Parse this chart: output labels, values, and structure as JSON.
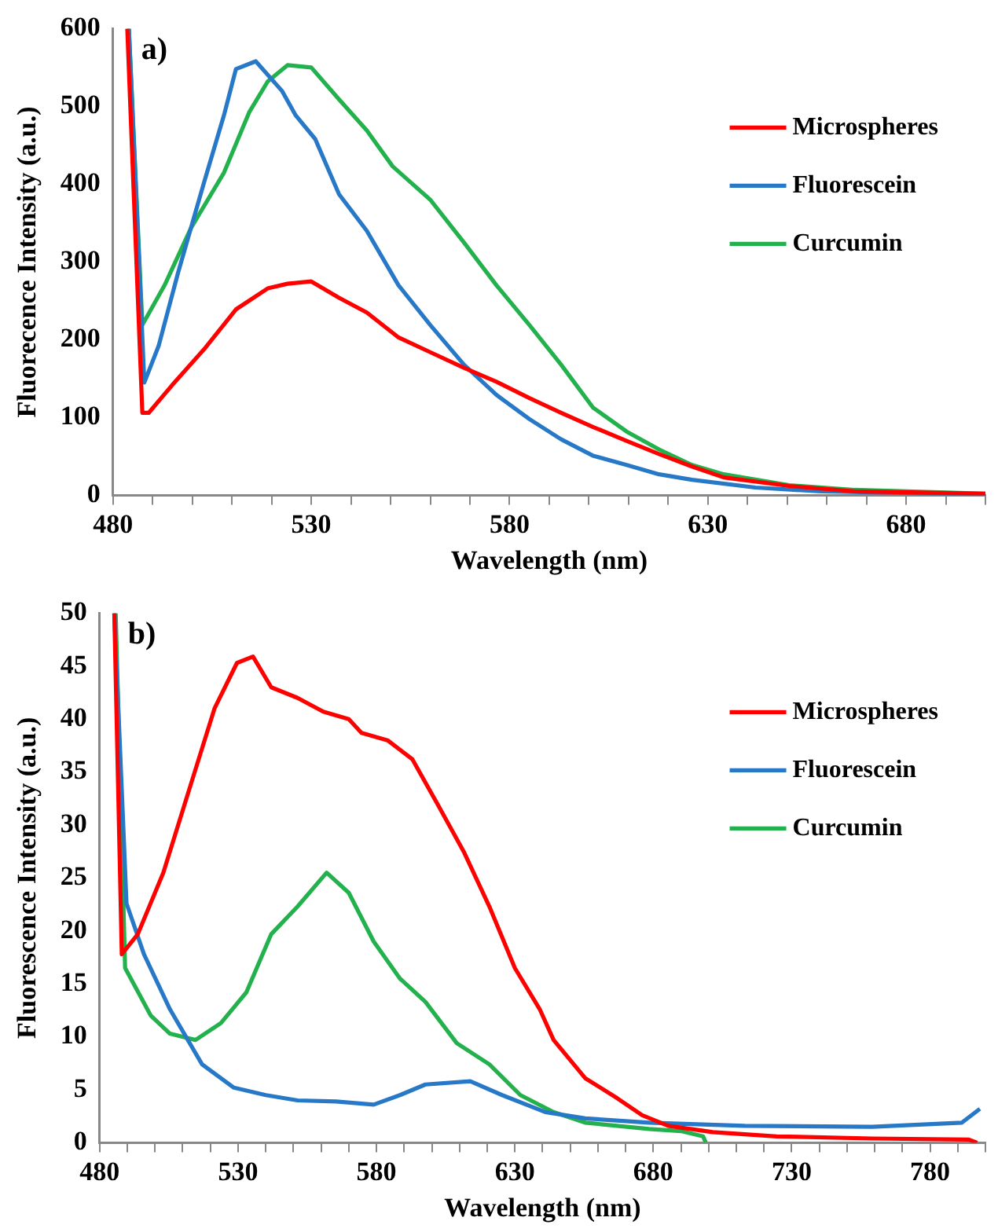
{
  "chart_data": [
    {
      "type": "line",
      "xlabel": "Wavelength (nm)",
      "ylabel": "Fluorecence Intensity (a.u.)",
      "annotations": [
        "a)"
      ],
      "xlim": [
        480,
        700
      ],
      "ylim": [
        0,
        600
      ],
      "xticks": [
        480,
        {
          "value": 490,
          "label": null
        },
        {
          "value": 500,
          "label": null
        },
        {
          "value": 510,
          "label": null
        },
        {
          "value": 520,
          "label": null
        },
        530,
        {
          "value": 540,
          "label": null
        },
        {
          "value": 550,
          "label": null
        },
        {
          "value": 560,
          "label": null
        },
        {
          "value": 570,
          "label": null
        },
        580,
        {
          "value": 590,
          "label": null
        },
        {
          "value": 600,
          "label": null
        },
        {
          "value": 610,
          "label": null
        },
        {
          "value": 620,
          "label": null
        },
        630,
        {
          "value": 640,
          "label": null
        },
        {
          "value": 650,
          "label": null
        },
        {
          "value": 660,
          "label": null
        },
        {
          "value": 670,
          "label": null
        },
        680,
        {
          "value": 690,
          "label": null
        },
        {
          "value": 700,
          "label": null
        }
      ],
      "yticks": [
        0,
        100,
        200,
        300,
        400,
        500,
        600
      ],
      "grid": false,
      "legend": "top right",
      "marker": "none",
      "line_style": "solid",
      "series": [
        {
          "name": "Microspheres",
          "color": "#ff0000",
          "x": [
            483.6,
            487.4,
            489,
            494.8,
            503,
            511,
            519,
            524,
            530,
            537,
            544,
            552,
            560,
            568.5,
            576.7,
            585,
            593,
            601,
            609.5,
            617.7,
            626,
            634,
            650.5,
            667,
            700
          ],
          "values": [
            600,
            106,
            106,
            141,
            188,
            239,
            266,
            272,
            275,
            254,
            235,
            203,
            184,
            164,
            146,
            125,
            106,
            88,
            70,
            53,
            37,
            23,
            12,
            5,
            2
          ]
        },
        {
          "name": "Fluorescein",
          "color": "#2878c8",
          "x": [
            484,
            487.9,
            491.5,
            496.4,
            503,
            508,
            511,
            516,
            522.6,
            526,
            531,
            537,
            544,
            552,
            560,
            568.5,
            576.7,
            585,
            593,
            601,
            609.5,
            617.7,
            626,
            642,
            658.7,
            700
          ],
          "values": [
            600,
            145,
            192,
            286,
            403,
            489,
            548,
            558,
            520,
            489,
            458,
            387,
            340,
            270,
            219,
            168,
            129,
            98,
            72,
            51,
            39,
            27,
            20,
            10,
            5,
            1
          ]
        },
        {
          "name": "Curcumin",
          "color": "#22b14c",
          "x": [
            484,
            487.4,
            493,
            499.7,
            508,
            514.4,
            519,
            524,
            530,
            537,
            544,
            550.5,
            560,
            568.5,
            576.7,
            585,
            593,
            601,
            609.5,
            617.7,
            626,
            634,
            650.5,
            667,
            700
          ],
          "values": [
            600,
            219,
            270,
            344,
            415,
            493,
            532,
            553,
            550,
            509,
            469,
            423,
            380,
            325,
            270,
            219,
            168,
            113,
            82,
            59,
            39,
            27,
            13,
            7,
            2
          ]
        }
      ]
    },
    {
      "type": "line",
      "xlabel": "Wavelength (nm)",
      "ylabel": "Fluorescence Intensity (a.u.)",
      "annotations": [
        "b)"
      ],
      "xlim": [
        480,
        800
      ],
      "ylim": [
        0,
        50
      ],
      "xticks": [
        480,
        {
          "value": 490,
          "label": null
        },
        {
          "value": 500,
          "label": null
        },
        {
          "value": 510,
          "label": null
        },
        {
          "value": 520,
          "label": null
        },
        530,
        {
          "value": 540,
          "label": null
        },
        {
          "value": 550,
          "label": null
        },
        {
          "value": 560,
          "label": null
        },
        {
          "value": 570,
          "label": null
        },
        580,
        {
          "value": 590,
          "label": null
        },
        {
          "value": 600,
          "label": null
        },
        {
          "value": 610,
          "label": null
        },
        {
          "value": 620,
          "label": null
        },
        630,
        {
          "value": 640,
          "label": null
        },
        {
          "value": 650,
          "label": null
        },
        {
          "value": 660,
          "label": null
        },
        {
          "value": 670,
          "label": null
        },
        680,
        {
          "value": 690,
          "label": null
        },
        {
          "value": 700,
          "label": null
        },
        {
          "value": 710,
          "label": null
        },
        {
          "value": 720,
          "label": null
        },
        730,
        {
          "value": 740,
          "label": null
        },
        {
          "value": 750,
          "label": null
        },
        {
          "value": 760,
          "label": null
        },
        {
          "value": 770,
          "label": null
        },
        780,
        {
          "value": 790,
          "label": null
        },
        {
          "value": 800,
          "label": null
        }
      ],
      "yticks": [
        0,
        5,
        10,
        15,
        20,
        25,
        30,
        35,
        40,
        45,
        50
      ],
      "grid": false,
      "legend": "top right",
      "marker": "none",
      "line_style": "solid",
      "series": [
        {
          "name": "Microspheres",
          "color": "#ff0000",
          "x": [
            485.3,
            488,
            493.8,
            503,
            512.3,
            521.5,
            529.6,
            535.4,
            542,
            551.5,
            560.8,
            570,
            574.6,
            584,
            593,
            602,
            611.5,
            620.8,
            630,
            639,
            644,
            655.4,
            667,
            676,
            685.4,
            701.5,
            724.6,
            759,
            794,
            797
          ],
          "values": [
            50,
            17.8,
            19.7,
            25.5,
            33.3,
            41,
            45.3,
            45.9,
            43,
            42,
            40.7,
            40,
            38.7,
            38,
            36.2,
            32,
            27.5,
            22.3,
            16.5,
            12.6,
            9.7,
            6.1,
            4.2,
            2.6,
            1.6,
            1,
            0.6,
            0.4,
            0.3,
            0
          ]
        },
        {
          "name": "Fluorescein",
          "color": "#2878c8",
          "x": [
            485.3,
            488,
            489.7,
            496,
            505.4,
            517,
            528.5,
            540,
            551.5,
            565.4,
            579,
            588.5,
            597.7,
            613.9,
            625.4,
            641,
            655.4,
            678.5,
            713,
            759,
            791.5,
            798
          ],
          "values": [
            50,
            33.3,
            22.6,
            17.8,
            12.6,
            7.4,
            5.2,
            4.5,
            4,
            3.9,
            3.6,
            4.5,
            5.5,
            5.8,
            4.5,
            2.9,
            2.3,
            1.9,
            1.6,
            1.5,
            1.9,
            3.2
          ]
        },
        {
          "name": "Curcumin",
          "color": "#22b14c",
          "x": [
            485.8,
            489.2,
            498.5,
            505.4,
            514.6,
            523.8,
            533,
            542,
            551.5,
            562,
            570,
            579,
            588.5,
            597.7,
            609,
            620.8,
            632,
            643.9,
            655.4,
            678.5,
            690,
            698,
            699
          ],
          "values": [
            50,
            16.5,
            12,
            10.3,
            9.7,
            11.3,
            14.2,
            19.7,
            22.3,
            25.5,
            23.6,
            19,
            15.5,
            13.3,
            9.4,
            7.4,
            4.5,
            2.9,
            1.9,
            1.3,
            1.1,
            0.6,
            0
          ]
        }
      ]
    }
  ]
}
